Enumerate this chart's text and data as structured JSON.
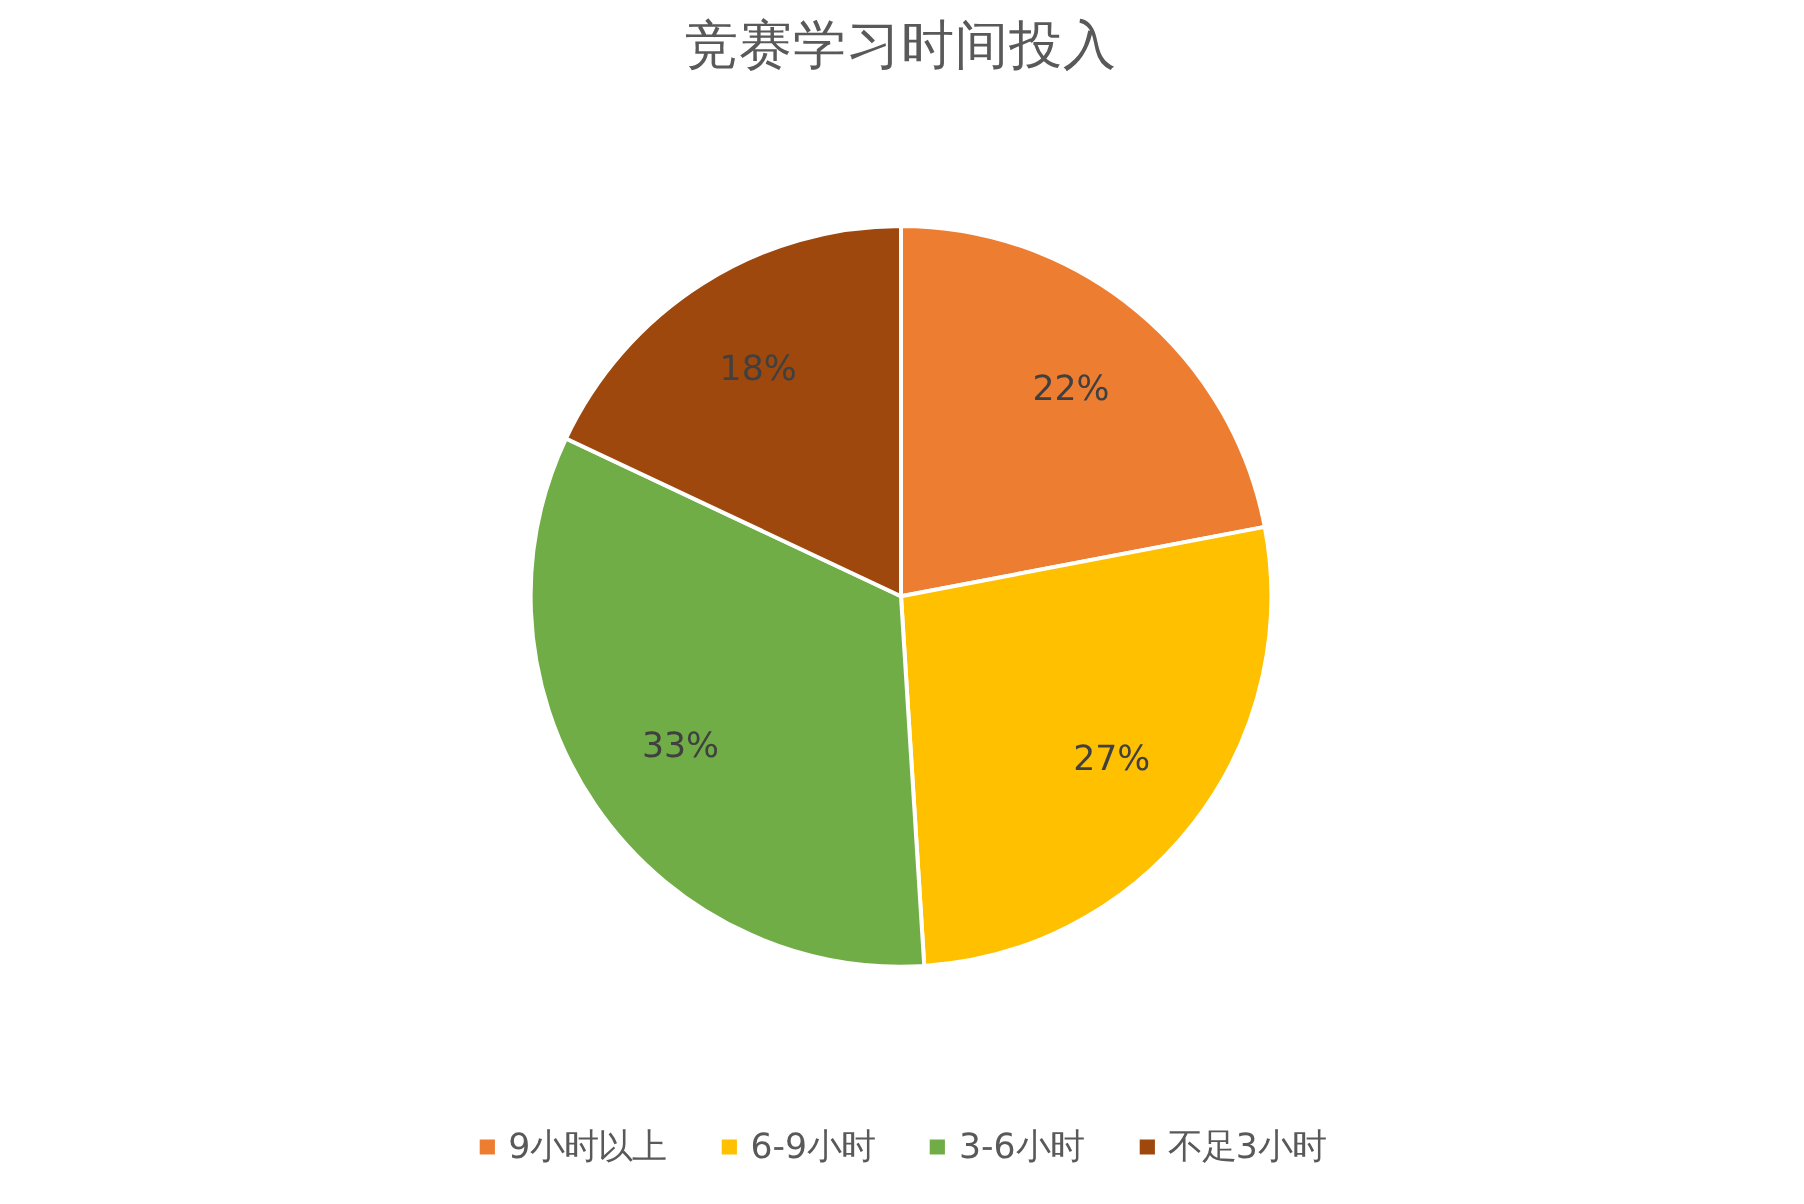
{
  "chart_data": {
    "type": "pie",
    "title": "竞赛学习时间投入",
    "categories": [
      "9小时以上",
      "6-9小时",
      "3-6小时",
      "不足3小时"
    ],
    "values": [
      22,
      27,
      33,
      18
    ],
    "value_labels": [
      "22%",
      "27%",
      "33%",
      "18%"
    ],
    "colors": [
      "#ed7d31",
      "#ffc000",
      "#70ad47",
      "#9e480e"
    ],
    "legend": "bottom"
  }
}
